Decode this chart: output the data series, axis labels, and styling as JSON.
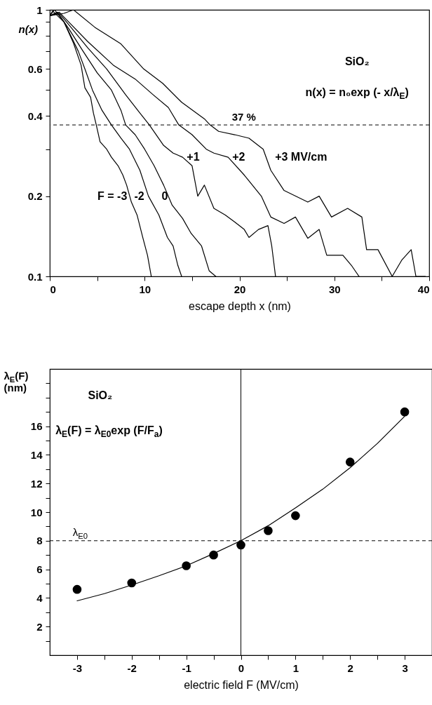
{
  "chart_data": [
    {
      "type": "line",
      "xlabel": "escape depth   x  (nm)",
      "ylabel": "n(x)",
      "log": true,
      "xlim": [
        0,
        40
      ],
      "xticks": [
        0,
        {
          "value": 5,
          "label": null
        },
        10,
        {
          "value": 15,
          "label": null
        },
        20,
        {
          "value": 25,
          "label": null
        },
        30,
        {
          "value": 35,
          "label": null
        },
        40
      ],
      "ylim": [
        0.1,
        1
      ],
      "yticks": [
        0.1,
        0.2,
        {
          "value": 0.3,
          "label": null
        },
        0.4,
        {
          "value": 0.5,
          "label": null
        },
        0.6,
        {
          "value": 0.7,
          "label": null
        },
        {
          "value": 0.8,
          "label": null
        },
        {
          "value": 0.9,
          "label": null
        },
        1
      ],
      "annotations": [
        "SiO₂",
        "n(x) = n₀exp (- x/λ$_{E}$)"
      ],
      "ref_lines": [
        {
          "axis": "y",
          "value": 0.37,
          "label": "37 %",
          "line_style": "dashed"
        }
      ],
      "series": [
        {
          "name": "F = -3",
          "color": "#000000",
          "x": [
            0,
            0.3,
            1.5,
            2.5,
            3.3,
            3.7,
            4.3,
            4.6,
            4.9,
            5.3,
            6,
            6.5,
            7.2,
            7.7,
            8.1,
            8.6,
            9.2,
            9.8,
            10.3,
            10.7
          ],
          "values": [
            0.95,
            0.99,
            0.9,
            0.75,
            0.62,
            0.51,
            0.47,
            0.41,
            0.37,
            0.32,
            0.3,
            0.28,
            0.26,
            0.24,
            0.22,
            0.19,
            0.17,
            0.14,
            0.12,
            0.1
          ]
        },
        {
          "name": "-2",
          "color": "#000000",
          "x": [
            0,
            0.5,
            1.5,
            3,
            3.7,
            4.5,
            5.5,
            6.5,
            7.5,
            8.4,
            9.5,
            10.4,
            11.5,
            12.4,
            13,
            13.5,
            13.9
          ],
          "values": [
            0.95,
            1,
            0.9,
            0.7,
            0.6,
            0.5,
            0.42,
            0.37,
            0.33,
            0.3,
            0.25,
            0.2,
            0.17,
            0.14,
            0.13,
            0.11,
            0.1
          ]
        },
        {
          "name": "0",
          "color": "#000000",
          "x": [
            0,
            0.8,
            2,
            3.5,
            5,
            6.5,
            7.5,
            8,
            9,
            10,
            11,
            12,
            12.9,
            14,
            14.9,
            16,
            16.8,
            17.5
          ],
          "values": [
            0.95,
            0.98,
            0.85,
            0.7,
            0.58,
            0.5,
            0.42,
            0.37,
            0.34,
            0.3,
            0.26,
            0.22,
            0.185,
            0.165,
            0.145,
            0.13,
            0.105,
            0.1
          ]
        },
        {
          "name": "+1",
          "color": "#000000",
          "x": [
            0,
            1,
            2,
            4,
            6,
            8,
            9.5,
            10.5,
            12,
            13,
            14,
            15,
            15.6,
            16.3,
            17.3,
            18.5,
            19.5,
            20.5,
            21,
            22,
            23,
            23.4,
            23.8
          ],
          "values": [
            0.95,
            0.97,
            0.88,
            0.72,
            0.6,
            0.48,
            0.41,
            0.37,
            0.31,
            0.29,
            0.28,
            0.26,
            0.2,
            0.22,
            0.18,
            0.17,
            0.16,
            0.15,
            0.14,
            0.15,
            0.155,
            0.13,
            0.1
          ]
        },
        {
          "name": "+2",
          "color": "#000000",
          "x": [
            0,
            1,
            2,
            4,
            6.7,
            9,
            10.9,
            12.5,
            13.6,
            15,
            16.5,
            17.3,
            18.8,
            20.5,
            22.3,
            23.3,
            24.7,
            25.9,
            27.2,
            28.4,
            29.2,
            30.9,
            31.8,
            32.6
          ],
          "values": [
            0.95,
            0.98,
            0.9,
            0.76,
            0.62,
            0.55,
            0.48,
            0.43,
            0.37,
            0.34,
            0.3,
            0.29,
            0.28,
            0.24,
            0.2,
            0.167,
            0.158,
            0.167,
            0.139,
            0.15,
            0.12,
            0.12,
            0.11,
            0.1
          ]
        },
        {
          "name": "+3 MV/cm",
          "color": "#000000",
          "x": [
            0,
            1.5,
            2.5,
            4.75,
            7.5,
            9.9,
            11.9,
            13.9,
            16.3,
            16.9,
            17.8,
            19.5,
            21,
            22.5,
            23.3,
            24.7,
            27.2,
            28.4,
            29.7,
            31.4,
            32.9,
            33.4,
            34.6,
            36.1,
            37.1,
            38.1,
            38.6,
            39.6
          ],
          "values": [
            0.95,
            0.97,
            1,
            0.86,
            0.745,
            0.6,
            0.53,
            0.45,
            0.39,
            0.37,
            0.35,
            0.34,
            0.33,
            0.3,
            0.25,
            0.21,
            0.19,
            0.2,
            0.167,
            0.18,
            0.167,
            0.126,
            0.126,
            0.1,
            0.115,
            0.126,
            0.1,
            0.1
          ]
        }
      ]
    },
    {
      "type": "scatter",
      "xlabel": "electric field  F  (MV/cm)",
      "ylabel": "λ$_{E}$(F)\n(nm)",
      "xlim": [
        -3.5,
        3.5
      ],
      "xticks": [
        -3,
        {
          "value": -2.5,
          "label": null
        },
        -2,
        {
          "value": -1.5,
          "label": null
        },
        -1,
        {
          "value": -0.5,
          "label": null
        },
        0,
        {
          "value": 0.5,
          "label": null
        },
        1,
        {
          "value": 1.5,
          "label": null
        },
        2,
        {
          "value": 2.5,
          "label": null
        },
        3
      ],
      "ylim": [
        0,
        20
      ],
      "yticks": [
        {
          "value": 1,
          "label": null
        },
        2,
        {
          "value": 3,
          "label": null
        },
        4,
        {
          "value": 5,
          "label": null
        },
        6,
        {
          "value": 7,
          "label": null
        },
        8,
        {
          "value": 9,
          "label": null
        },
        10,
        {
          "value": 11,
          "label": null
        },
        12,
        {
          "value": 13,
          "label": null
        },
        14,
        {
          "value": 15,
          "label": null
        },
        16,
        {
          "value": 17,
          "label": null
        },
        {
          "value": 18,
          "label": null
        },
        {
          "value": 19,
          "label": null
        }
      ],
      "annotations": [
        "SiO₂",
        "λ$_{E}$(F) = λ$_{E0}$exp (F/F$_{a}$)"
      ],
      "ref_lines": [
        {
          "axis": "y",
          "value": 8,
          "label": "λ$_{E0}$",
          "line_style": "dashed"
        },
        {
          "axis": "x",
          "value": 0,
          "line_style": "solid"
        }
      ],
      "series": [
        {
          "type": "line",
          "color": "#000000",
          "x": [
            -3,
            -2.5,
            -2,
            -1.5,
            -1,
            -0.5,
            0,
            0.5,
            1,
            1.5,
            2,
            2.5,
            3
          ],
          "values": [
            3.8,
            4.3,
            4.9,
            5.55,
            6.25,
            7.1,
            8,
            9.05,
            10.3,
            11.6,
            13.1,
            14.8,
            16.7
          ]
        },
        {
          "type": "scatter",
          "marker": "circle",
          "color": "#000000",
          "x": [
            -3,
            -2,
            -1,
            -0.5,
            0,
            0.5,
            1,
            2,
            3
          ],
          "values": [
            4.6,
            5.05,
            6.25,
            7,
            7.7,
            8.7,
            9.75,
            13.5,
            17
          ]
        }
      ]
    }
  ]
}
